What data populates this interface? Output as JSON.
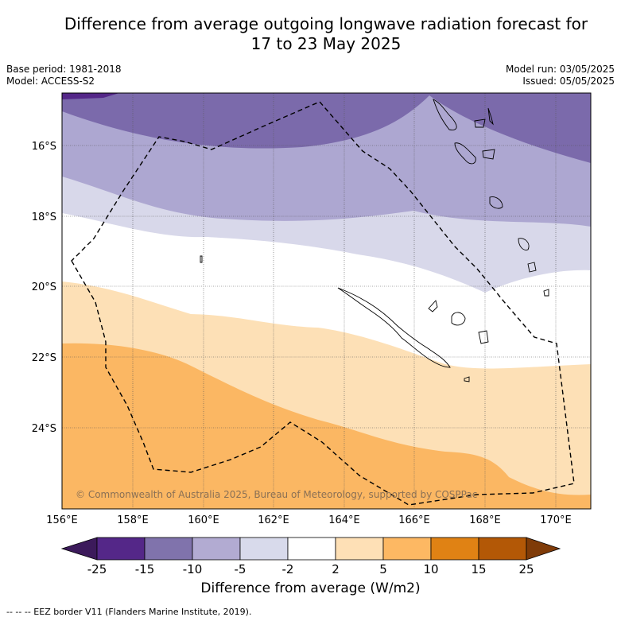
{
  "header": {
    "title_line1": "Difference from average outgoing longwave radiation forecast for",
    "title_line2": "17 to 23 May 2025",
    "base_period": "Base period: 1981-2018",
    "model": "Model: ACCESS-S2",
    "model_run": "Model run: 03/05/2025",
    "issued": "Issued: 05/05/2025"
  },
  "map": {
    "lat_labels": [
      "16°S",
      "18°S",
      "20°S",
      "22°S",
      "24°S"
    ],
    "lon_labels": [
      "156°E",
      "158°E",
      "160°E",
      "162°E",
      "164°E",
      "166°E",
      "168°E",
      "170°E"
    ],
    "copyright": "© Commonwealth of Australia 2025, Bureau of Meteorology, supported by COSPPac",
    "band_colors": [
      "#3c1a5b",
      "#7b6aab",
      "#ada7d1",
      "#d8d8ea",
      "#ffffff",
      "#fde0b6",
      "#fbb763"
    ]
  },
  "colorbar": {
    "tick_labels": [
      "-25",
      "-15",
      "-10",
      "-5",
      "-2",
      "2",
      "5",
      "10",
      "15",
      "25"
    ],
    "colors": [
      "#3c1a5b",
      "#542788",
      "#8073ac",
      "#b2abd2",
      "#d8daeb",
      "#ffffff",
      "#fee0b6",
      "#fdb863",
      "#e08214",
      "#b35806",
      "#7f3b08"
    ],
    "title": "Difference from average (W/m2)"
  },
  "footer": {
    "legend_text": "-- --  -- EEZ border V11 (Flanders Marine Institute, 2019)."
  }
}
